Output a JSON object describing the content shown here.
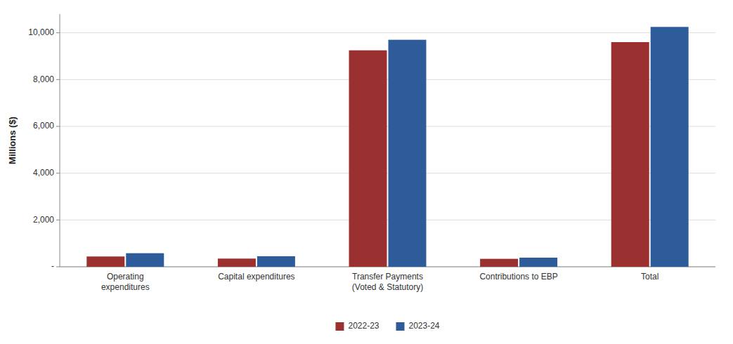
{
  "chart_data": {
    "type": "bar",
    "y_label": "Millions ($)",
    "categories": [
      "Operating\nexpenditures",
      "Capital expenditures",
      "Transfer Payments\n(Voted & Statutory)",
      "Contributions to EBP",
      "Total"
    ],
    "series": [
      {
        "name": "2022-23",
        "color": "#9B3030",
        "values": [
          440,
          350,
          9250,
          340,
          9600
        ]
      },
      {
        "name": "2023-24",
        "color": "#2E5B9A",
        "values": [
          580,
          450,
          9700,
          390,
          10250
        ]
      }
    ],
    "ylim": [
      0,
      10800
    ],
    "yticks": [
      {
        "value": 0,
        "label": "-"
      },
      {
        "value": 2000,
        "label": "2,000"
      },
      {
        "value": 4000,
        "label": "4,000"
      },
      {
        "value": 6000,
        "label": "6,000"
      },
      {
        "value": 8000,
        "label": "8,000"
      },
      {
        "value": 10000,
        "label": "10,000"
      }
    ],
    "grid": true,
    "legend": "bottom"
  }
}
